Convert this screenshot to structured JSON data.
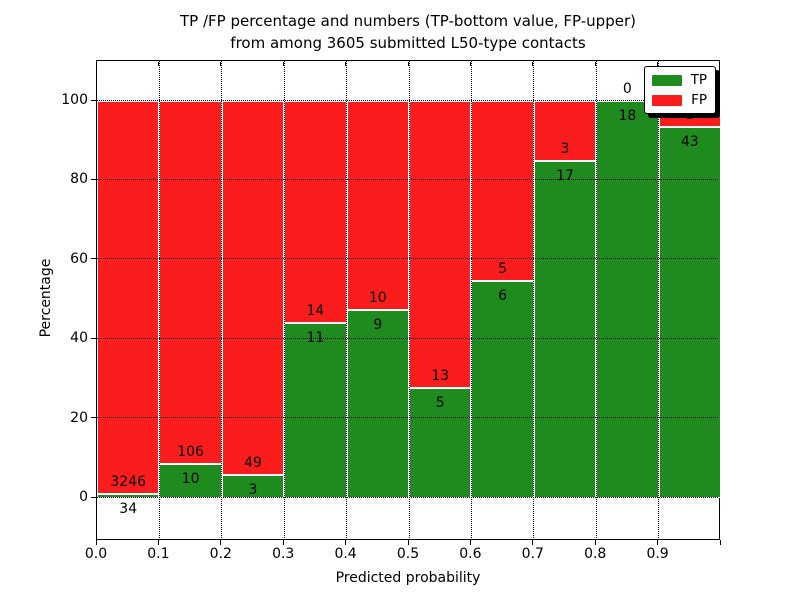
{
  "background": "#ffffff",
  "frame_color": "#000000",
  "chart_data": {
    "type": "bar",
    "stacked": true,
    "orientation": "vertical",
    "title_lines": [
      "TP /FP percentage and numbers (TP-bottom value, FP-upper)",
      "from among 3605 submitted L50-type contacts"
    ],
    "xlabel": "Predicted probability",
    "ylabel": "Percentage",
    "x_tick_labels": [
      "0.0",
      "0.1",
      "0.2",
      "0.3",
      "0.4",
      "0.5",
      "0.6",
      "0.7",
      "0.8",
      "0.9"
    ],
    "y_ticks": [
      0,
      20,
      40,
      60,
      80,
      100
    ],
    "xlim": [
      0.0,
      1.0
    ],
    "ylim": [
      -10.8,
      110.1
    ],
    "bin_edges": [
      0.0,
      0.1,
      0.2,
      0.3,
      0.4,
      0.5,
      0.6,
      0.7,
      0.8,
      0.9,
      1.0
    ],
    "series": [
      {
        "name": "TP",
        "color": "#1f8b1f",
        "position": "bottom",
        "counts": [
          34,
          10,
          3,
          11,
          9,
          5,
          6,
          17,
          18,
          43
        ]
      },
      {
        "name": "FP",
        "color": "#fb1d1d",
        "position": "top",
        "counts": [
          3246,
          106,
          49,
          14,
          10,
          13,
          5,
          3,
          0,
          3
        ]
      }
    ],
    "tp_percent_of_bin": [
      1.0,
      8.6,
      5.8,
      44.0,
      47.4,
      27.8,
      54.5,
      85.0,
      100.0,
      93.5
    ],
    "bar_total_percent": 100,
    "total_submitted": 3605,
    "grid": {
      "visible": true,
      "style": "dotted",
      "color": "#000000"
    },
    "bar_edge_color": "#ffffff",
    "legend_position": "upper right"
  }
}
